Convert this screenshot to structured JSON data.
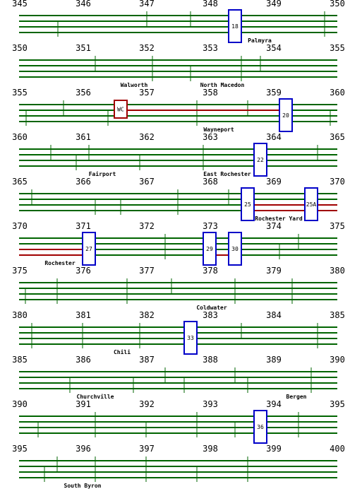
{
  "rows": [
    {
      "miles": [
        345,
        346,
        347,
        348,
        349,
        350
      ],
      "stations": [
        "Palmyra"
      ],
      "signals": [
        "18"
      ]
    },
    {
      "miles": [
        350,
        351,
        352,
        353,
        354,
        355
      ],
      "stations": [
        "Walworth",
        "North Macedon"
      ],
      "signals": []
    },
    {
      "miles": [
        355,
        356,
        357,
        358,
        359,
        360
      ],
      "stations": [
        "Wayneport"
      ],
      "signals": [
        "WC",
        "20"
      ]
    },
    {
      "miles": [
        360,
        361,
        362,
        363,
        364,
        365
      ],
      "stations": [
        "Fairport",
        "East Rochester"
      ],
      "signals": [
        "22"
      ]
    },
    {
      "miles": [
        365,
        366,
        367,
        368,
        369,
        370
      ],
      "stations": [
        "Rochester Yard"
      ],
      "signals": [
        "25",
        "25A"
      ]
    },
    {
      "miles": [
        370,
        371,
        372,
        373,
        374,
        375
      ],
      "stations": [
        "Rochester"
      ],
      "signals": [
        "27",
        "29",
        "30"
      ]
    },
    {
      "miles": [
        375,
        376,
        377,
        378,
        379,
        380
      ],
      "stations": [
        "Coldwater"
      ],
      "signals": []
    },
    {
      "miles": [
        380,
        381,
        382,
        383,
        384,
        385
      ],
      "stations": [
        "Chili"
      ],
      "signals": [
        "33"
      ]
    },
    {
      "miles": [
        385,
        386,
        387,
        388,
        389,
        390
      ],
      "stations": [
        "Churchville",
        "Bergen"
      ],
      "signals": []
    },
    {
      "miles": [
        390,
        391,
        392,
        393,
        394,
        395
      ],
      "stations": [],
      "signals": [
        "36"
      ]
    },
    {
      "miles": [
        395,
        396,
        397,
        398,
        399,
        400
      ],
      "stations": [
        "South Byron"
      ],
      "signals": []
    }
  ]
}
